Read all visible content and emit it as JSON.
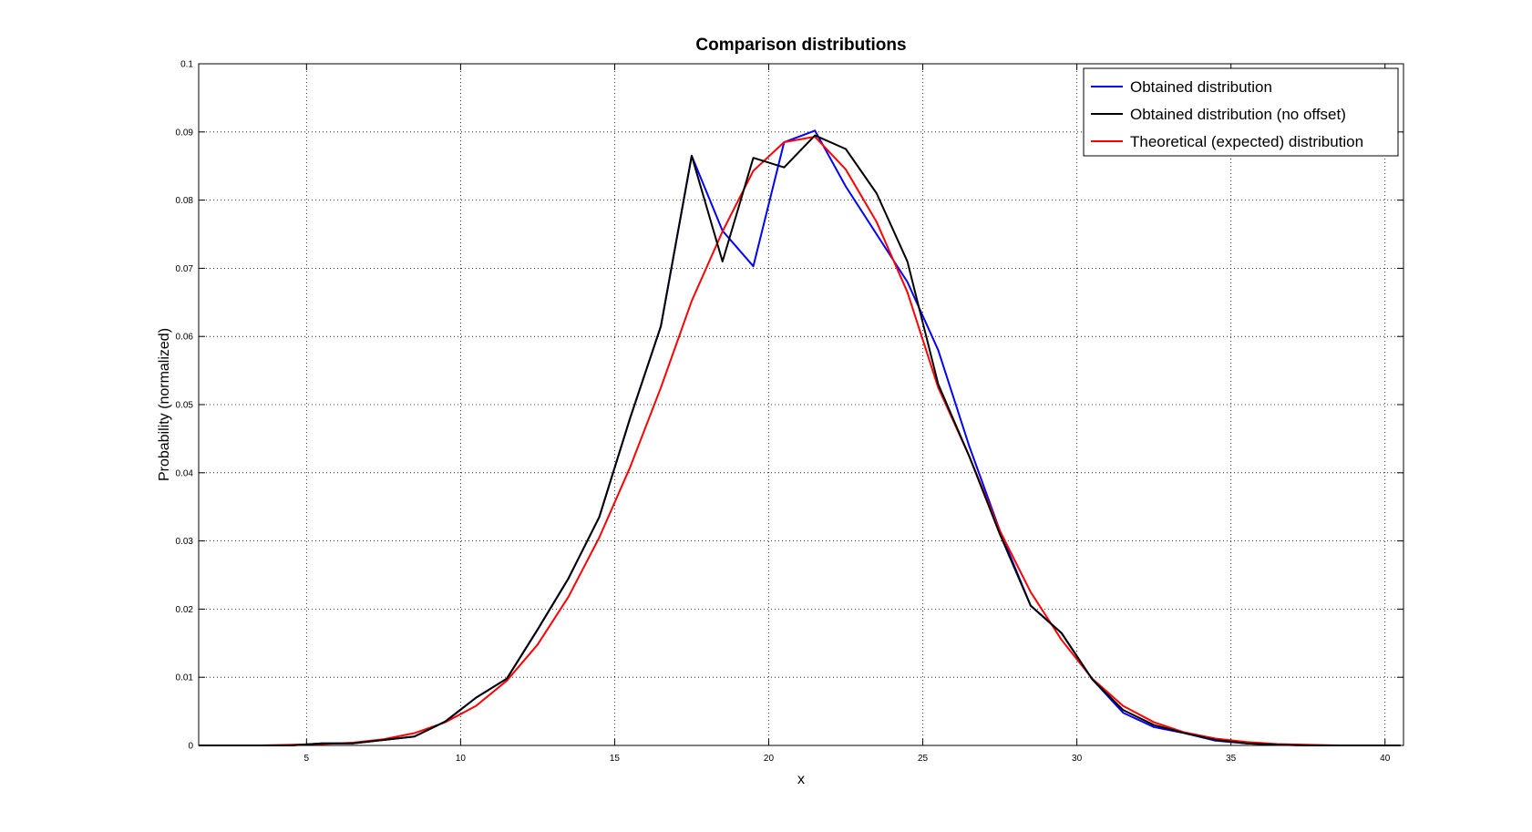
{
  "chart_data": {
    "type": "line",
    "title": "Comparison distributions",
    "xlabel": "x",
    "ylabel": "Probability (normalized)",
    "xlim": [
      1.5,
      40.6
    ],
    "ylim": [
      0,
      0.1
    ],
    "grid": true,
    "legend_position": "top-right",
    "x_ticks": [
      "5",
      "10",
      "15",
      "20",
      "25",
      "30",
      "35",
      "40"
    ],
    "y_ticks": [
      "0",
      "0.01",
      "0.02",
      "0.03",
      "0.04",
      "0.05",
      "0.06",
      "0.07",
      "0.08",
      "0.09",
      "0.1"
    ],
    "x": [
      1.5,
      2.5,
      3.5,
      4.5,
      5.5,
      6.5,
      7.5,
      8.5,
      9.5,
      10.5,
      11.5,
      12.5,
      13.5,
      14.5,
      15.5,
      16.5,
      17.5,
      18.5,
      19.5,
      20.5,
      21.5,
      22.5,
      23.5,
      24.5,
      25.5,
      26.5,
      27.5,
      28.5,
      29.5,
      30.5,
      31.5,
      32.5,
      33.5,
      34.5,
      35.5,
      36.5,
      37.5,
      38.5,
      39.5,
      40.5
    ],
    "series": [
      {
        "name": "Obtained distribution",
        "color": "#0000ff",
        "values": [
          0,
          0,
          0,
          0,
          0.0003,
          0.0003,
          0.0008,
          0.0013,
          0.0035,
          0.007,
          0.0098,
          0.017,
          0.0245,
          0.0335,
          0.048,
          0.0615,
          0.0865,
          0.0755,
          0.0703,
          0.0885,
          0.0902,
          0.082,
          0.075,
          0.068,
          0.058,
          0.044,
          0.0315,
          0.0205,
          0.0165,
          0.0097,
          0.0048,
          0.0027,
          0.0018,
          0.0007,
          0.0003,
          0.0001,
          0,
          0,
          0,
          0
        ]
      },
      {
        "name": "Obtained distribution (no offset)",
        "color": "#000000",
        "values": [
          0,
          0,
          0,
          0,
          0.0003,
          0.0003,
          0.0008,
          0.0013,
          0.0035,
          0.007,
          0.0098,
          0.017,
          0.0245,
          0.0335,
          0.048,
          0.0615,
          0.0865,
          0.071,
          0.0862,
          0.0848,
          0.0895,
          0.0875,
          0.081,
          0.071,
          0.053,
          0.0425,
          0.031,
          0.0205,
          0.0165,
          0.0097,
          0.0052,
          0.003,
          0.0018,
          0.0008,
          0.0003,
          0.0001,
          0,
          0,
          0,
          0
        ]
      },
      {
        "name": "Theoretical (expected) distribution",
        "color": "#ff0000",
        "values": [
          0,
          0,
          0,
          0.0001,
          0.0002,
          0.0004,
          0.0009,
          0.0018,
          0.0034,
          0.0058,
          0.0095,
          0.0148,
          0.0218,
          0.0305,
          0.0408,
          0.0525,
          0.0652,
          0.0754,
          0.0843,
          0.0885,
          0.0893,
          0.0845,
          0.0768,
          0.0665,
          0.0525,
          0.0425,
          0.0315,
          0.0225,
          0.0155,
          0.0098,
          0.0058,
          0.0034,
          0.0019,
          0.001,
          0.0005,
          0.0002,
          0.0001,
          0,
          0,
          0
        ]
      }
    ]
  }
}
